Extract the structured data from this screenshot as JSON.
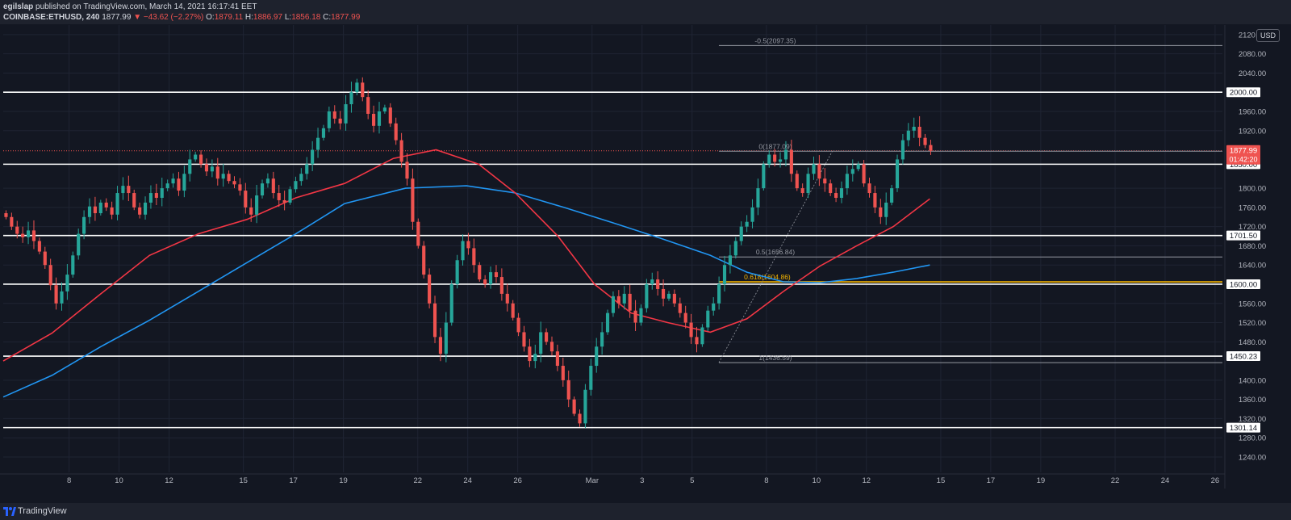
{
  "header": {
    "publisher_user": "egilslap",
    "publisher_rest": " published on TradingView.com, March 14, 2021 16:17:41 EET",
    "symbol": "COINBASE:ETHUSD, 240",
    "last": "1877.99",
    "change": "▼ −43.62 (−2.27%)",
    "o_label": "O:",
    "o": "1879.11",
    "h_label": "H:",
    "h": "1886.97",
    "l_label": "L:",
    "l": "1856.18",
    "c_label": "C:",
    "c": "1877.99"
  },
  "currency": "USD",
  "footer": {
    "brand": "TradingView"
  },
  "colors": {
    "background": "#131722",
    "up": "#26a69a",
    "down": "#ef5350",
    "ma_fast": "#f23645",
    "ma_slow": "#2196f3",
    "fib_618": "#f5b400"
  },
  "chart_data": {
    "type": "candlestick",
    "ylim": [
      1208,
      2140
    ],
    "y_ticks": [
      "2120.00",
      "2080.00",
      "2040.00",
      "1960.00",
      "1920.00",
      "1800.00",
      "1760.00",
      "1720.00",
      "1680.00",
      "1640.00",
      "1560.00",
      "1520.00",
      "1480.00",
      "1400.00",
      "1360.00",
      "1320.00",
      "1280.00",
      "1240.00"
    ],
    "x_ticks": [
      {
        "label": "8",
        "pos": 0.054
      },
      {
        "label": "10",
        "pos": 0.095
      },
      {
        "label": "12",
        "pos": 0.136
      },
      {
        "label": "15",
        "pos": 0.197
      },
      {
        "label": "17",
        "pos": 0.238
      },
      {
        "label": "19",
        "pos": 0.279
      },
      {
        "label": "22",
        "pos": 0.34
      },
      {
        "label": "24",
        "pos": 0.381
      },
      {
        "label": "26",
        "pos": 0.422
      },
      {
        "label": "Mar",
        "pos": 0.483
      },
      {
        "label": "3",
        "pos": 0.524
      },
      {
        "label": "5",
        "pos": 0.565
      },
      {
        "label": "8",
        "pos": 0.626
      },
      {
        "label": "10",
        "pos": 0.667
      },
      {
        "label": "12",
        "pos": 0.708
      },
      {
        "label": "15",
        "pos": 0.769
      },
      {
        "label": "17",
        "pos": 0.81
      },
      {
        "label": "19",
        "pos": 0.851
      },
      {
        "label": "22",
        "pos": 0.912
      },
      {
        "label": "24",
        "pos": 0.953
      },
      {
        "label": "26",
        "pos": 0.994
      }
    ],
    "horizontal_levels": [
      {
        "value": 2000.0,
        "label": "2000.00"
      },
      {
        "value": 1850.0,
        "label": "1850.00"
      },
      {
        "value": 1701.5,
        "label": "1701.50"
      },
      {
        "value": 1600.0,
        "label": "1600.00"
      },
      {
        "value": 1450.23,
        "label": "1450.23"
      },
      {
        "value": 1301.14,
        "label": "1301.14"
      }
    ],
    "last_price": {
      "value": 1877.99,
      "label": "1877.99",
      "countdown": "01:42:20"
    },
    "fib_levels": [
      {
        "value": 2097.35,
        "label": "-0.5(2097.35)"
      },
      {
        "value": 1877.09,
        "label": "0(1877.09)"
      },
      {
        "value": 1656.84,
        "label": "0.5(1656.84)"
      },
      {
        "value": 1604.86,
        "label": "0.618(1604.86)",
        "highlight": true
      },
      {
        "value": 1436.59,
        "label": "1(1436.59)"
      }
    ],
    "fib_range": {
      "start": 0.587,
      "end": 1.0
    },
    "closes": [
      1740,
      1720,
      1705,
      1698,
      1712,
      1690,
      1668,
      1640,
      1598,
      1560,
      1585,
      1620,
      1660,
      1705,
      1740,
      1762,
      1748,
      1770,
      1760,
      1745,
      1790,
      1805,
      1790,
      1760,
      1745,
      1770,
      1790,
      1780,
      1800,
      1810,
      1820,
      1795,
      1830,
      1860,
      1870,
      1850,
      1835,
      1845,
      1820,
      1830,
      1815,
      1808,
      1795,
      1760,
      1745,
      1785,
      1810,
      1820,
      1790,
      1775,
      1770,
      1798,
      1815,
      1830,
      1850,
      1880,
      1905,
      1925,
      1960,
      1945,
      1935,
      1975,
      2000,
      2020,
      1990,
      1955,
      1930,
      1960,
      1968,
      1935,
      1900,
      1855,
      1820,
      1730,
      1680,
      1620,
      1560,
      1490,
      1455,
      1520,
      1600,
      1650,
      1690,
      1675,
      1640,
      1610,
      1600,
      1625,
      1615,
      1580,
      1560,
      1530,
      1500,
      1470,
      1440,
      1455,
      1500,
      1480,
      1460,
      1430,
      1400,
      1360,
      1330,
      1310,
      1380,
      1430,
      1470,
      1500,
      1540,
      1575,
      1560,
      1580,
      1545,
      1520,
      1550,
      1600,
      1610,
      1590,
      1570,
      1580,
      1560,
      1540,
      1520,
      1490,
      1475,
      1510,
      1545,
      1560,
      1600,
      1640,
      1660,
      1690,
      1720,
      1730,
      1760,
      1800,
      1850,
      1870,
      1855,
      1860,
      1880,
      1830,
      1800,
      1790,
      1830,
      1850,
      1820,
      1810,
      1790,
      1780,
      1800,
      1830,
      1840,
      1850,
      1810,
      1790,
      1760,
      1740,
      1770,
      1800,
      1860,
      1900,
      1920,
      1928,
      1905,
      1890,
      1877.99
    ],
    "ma_fast": [
      [
        0.0,
        1440
      ],
      [
        0.04,
        1498
      ],
      [
        0.08,
        1580
      ],
      [
        0.12,
        1660
      ],
      [
        0.16,
        1705
      ],
      [
        0.2,
        1735
      ],
      [
        0.24,
        1780
      ],
      [
        0.28,
        1810
      ],
      [
        0.32,
        1862
      ],
      [
        0.355,
        1880
      ],
      [
        0.39,
        1850
      ],
      [
        0.42,
        1790
      ],
      [
        0.455,
        1700
      ],
      [
        0.485,
        1600
      ],
      [
        0.515,
        1540
      ],
      [
        0.545,
        1520
      ],
      [
        0.58,
        1500
      ],
      [
        0.61,
        1528
      ],
      [
        0.64,
        1585
      ],
      [
        0.67,
        1638
      ],
      [
        0.7,
        1680
      ],
      [
        0.73,
        1720
      ],
      [
        0.76,
        1778
      ]
    ],
    "ma_slow": [
      [
        0.0,
        1365
      ],
      [
        0.04,
        1410
      ],
      [
        0.08,
        1470
      ],
      [
        0.12,
        1525
      ],
      [
        0.16,
        1585
      ],
      [
        0.2,
        1645
      ],
      [
        0.24,
        1705
      ],
      [
        0.28,
        1768
      ],
      [
        0.33,
        1800
      ],
      [
        0.38,
        1805
      ],
      [
        0.42,
        1790
      ],
      [
        0.46,
        1760
      ],
      [
        0.5,
        1728
      ],
      [
        0.54,
        1695
      ],
      [
        0.58,
        1660
      ],
      [
        0.61,
        1625
      ],
      [
        0.64,
        1605
      ],
      [
        0.67,
        1603
      ],
      [
        0.7,
        1612
      ],
      [
        0.73,
        1625
      ],
      [
        0.76,
        1640
      ]
    ]
  }
}
